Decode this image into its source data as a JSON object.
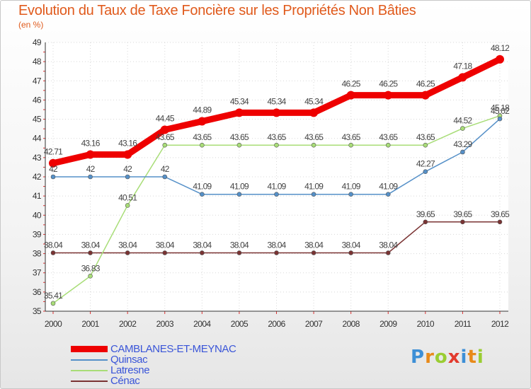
{
  "chart_data": {
    "type": "line",
    "title": "Evolution du Taux de Taxe Foncière sur les Propriétés Non Bâties",
    "subtitle": "(en %)",
    "xlabel": "",
    "ylabel": "",
    "x": [
      "2000",
      "2001",
      "2002",
      "2003",
      "2004",
      "2005",
      "2006",
      "2007",
      "2008",
      "2009",
      "2010",
      "2011",
      "2012"
    ],
    "ylim": [
      35,
      49
    ],
    "yticks": [
      "35",
      "36",
      "37",
      "38",
      "39",
      "40",
      "41",
      "42",
      "43",
      "44",
      "45",
      "46",
      "47",
      "48",
      "49"
    ],
    "grid": true,
    "series": [
      {
        "name": "CAMBLANES-ET-MEYNAC",
        "color": "#ee0000",
        "values": [
          42.71,
          43.16,
          43.16,
          44.45,
          44.89,
          45.34,
          45.34,
          45.34,
          46.25,
          46.25,
          46.25,
          47.18,
          48.12
        ],
        "labels": [
          "42.71",
          "43.16",
          "43.16",
          "44.45",
          "44.89",
          "45.34",
          "45.34",
          "45.34",
          "46.25",
          "46.25",
          "46.25",
          "47.18",
          "48.12"
        ]
      },
      {
        "name": "Quinsac",
        "color": "#5590c8",
        "values": [
          42,
          42,
          42,
          42,
          41.09,
          41.09,
          41.09,
          41.09,
          41.09,
          41.09,
          42.27,
          43.29,
          45.02
        ],
        "labels": [
          "42",
          "42",
          "42",
          "42",
          "41.09",
          "41.09",
          "41.09",
          "41.09",
          "41.09",
          "41.09",
          "42.27",
          "43.29",
          "45.02"
        ]
      },
      {
        "name": "Latresne",
        "color": "#a8dd77",
        "values": [
          35.41,
          36.83,
          40.51,
          43.65,
          43.65,
          43.65,
          43.65,
          43.65,
          43.65,
          43.65,
          43.65,
          44.52,
          45.18
        ],
        "labels": [
          "35.41",
          "36.83",
          "40.51",
          "43.65",
          "43.65",
          "43.65",
          "43.65",
          "43.65",
          "43.65",
          "43.65",
          "43.65",
          "44.52",
          "45.18"
        ]
      },
      {
        "name": "Cénac",
        "color": "#7a3333",
        "values": [
          38.04,
          38.04,
          38.04,
          38.04,
          38.04,
          38.04,
          38.04,
          38.04,
          38.04,
          38.04,
          39.65,
          39.65,
          39.65
        ],
        "labels": [
          "38.04",
          "38.04",
          "38.04",
          "38.04",
          "38.04",
          "38.04",
          "38.04",
          "38.04",
          "38.04",
          "38.04",
          "39.65",
          "39.65",
          "39.65"
        ]
      }
    ],
    "legend_position": "bottom-left"
  },
  "logo": {
    "letters": [
      "P",
      "r",
      "o",
      "x",
      "i",
      "t",
      "i"
    ],
    "colors": [
      "#3d8fd6",
      "#e88a1a",
      "#9acd32",
      "#e23b2e",
      "#3d8fd6",
      "#e88a1a",
      "#9acd32"
    ]
  }
}
